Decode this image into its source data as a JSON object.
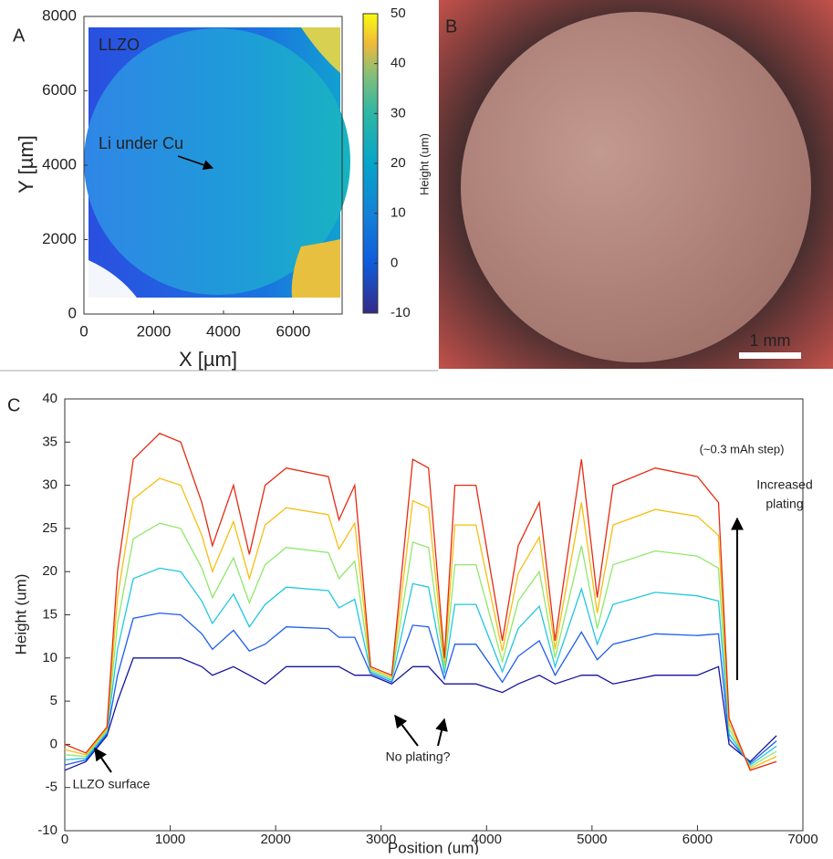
{
  "chart_data": [
    {
      "type": "heatmap",
      "panel_label": "A",
      "xlabel": "X [µm]",
      "ylabel": "Y [µm]",
      "xlim": [
        0,
        7400
      ],
      "ylim": [
        0,
        8000
      ],
      "xticks": [
        0,
        2000,
        4000,
        6000
      ],
      "yticks": [
        0,
        2000,
        4000,
        6000,
        8000
      ],
      "colorbar": {
        "label": "Height (um)",
        "lim": [
          -10,
          50
        ],
        "ticks": [
          -10,
          0,
          10,
          20,
          30,
          40,
          50
        ]
      },
      "annotations": [
        "LLZO",
        "Li under Cu"
      ]
    },
    {
      "type": "image",
      "panel_label": "B",
      "scale_bar": "1 mm"
    },
    {
      "type": "line",
      "panel_label": "C",
      "xlabel": "Position (um)",
      "ylabel": "Height (um)",
      "xlim": [
        0,
        7000
      ],
      "ylim": [
        -10,
        40
      ],
      "xticks": [
        0,
        1000,
        2000,
        3000,
        4000,
        5000,
        6000,
        7000
      ],
      "yticks": [
        -10,
        -5,
        0,
        5,
        10,
        15,
        20,
        25,
        30,
        35,
        40
      ],
      "annotations": {
        "step": "(~0.3 mAh step)",
        "increased": [
          "Increased",
          "plating"
        ],
        "no_plating": "No plating?",
        "surface": "LLZO surface"
      },
      "x": [
        0,
        200,
        400,
        500,
        650,
        900,
        1100,
        1300,
        1400,
        1600,
        1750,
        1900,
        2100,
        2500,
        2600,
        2750,
        2900,
        3100,
        3300,
        3450,
        3600,
        3700,
        3900,
        4150,
        4300,
        4500,
        4650,
        4900,
        5050,
        5200,
        5600,
        6000,
        6200,
        6300,
        6500,
        6750
      ],
      "series": [
        {
          "color": "#14149e",
          "values": [
            -3,
            -2,
            1,
            5,
            10,
            10,
            10,
            9,
            8,
            9,
            8,
            7,
            9,
            9,
            9,
            8,
            8,
            7,
            9,
            9,
            7,
            7,
            7,
            6,
            7,
            8,
            7,
            8,
            8,
            7,
            8,
            8,
            9,
            0,
            -2,
            1
          ]
        },
        {
          "color": "#1e5cf0",
          "values": [
            -2.4,
            -1.8,
            1.2,
            8,
            14.6,
            15.2,
            15,
            12.8,
            11,
            13.2,
            10.8,
            11.6,
            13.6,
            13.4,
            12.4,
            12.4,
            8.2,
            7.2,
            13.8,
            13.6,
            7.6,
            11.6,
            11.6,
            7.2,
            10.2,
            12,
            8,
            13,
            9.8,
            11.6,
            12.8,
            12.6,
            12.8,
            0.6,
            -2.2,
            0.4
          ]
        },
        {
          "color": "#22c6e0",
          "values": [
            -1.8,
            -1.6,
            1.4,
            11,
            19.2,
            20.4,
            20,
            16.6,
            14,
            17.4,
            13.6,
            16.2,
            18.2,
            17.8,
            15.8,
            16.8,
            8.4,
            7.4,
            18.6,
            18.2,
            8.2,
            16.2,
            16.2,
            8.4,
            13.4,
            16,
            9,
            18,
            11.6,
            16.2,
            17.6,
            17.2,
            16.6,
            1.2,
            -2.4,
            -0.2
          ]
        },
        {
          "color": "#8ee86a",
          "values": [
            -1.2,
            -1.4,
            1.6,
            14,
            23.8,
            25.6,
            25,
            20.4,
            17,
            21.6,
            16.4,
            20.8,
            22.8,
            22.2,
            19.2,
            21.2,
            8.6,
            7.6,
            23.4,
            22.8,
            8.8,
            20.8,
            20.8,
            9.6,
            16.6,
            20,
            10,
            23,
            13.4,
            20.8,
            22.4,
            21.8,
            20.4,
            1.8,
            -2.6,
            -0.8
          ]
        },
        {
          "color": "#f6be10",
          "values": [
            -0.6,
            -1.2,
            1.8,
            17,
            28.4,
            30.8,
            30,
            24.2,
            20,
            25.8,
            19.2,
            25.4,
            27.4,
            26.6,
            22.6,
            25.6,
            8.8,
            7.8,
            28.2,
            27.4,
            9.4,
            25.4,
            25.4,
            10.8,
            19.8,
            24,
            11,
            28,
            15.2,
            25.4,
            27.2,
            26.4,
            24.2,
            2.4,
            -2.8,
            -1.4
          ]
        },
        {
          "color": "#e62a12",
          "values": [
            0,
            -1,
            2,
            20,
            33,
            36,
            35,
            28,
            23,
            30,
            22,
            30,
            32,
            31,
            26,
            30,
            9,
            8,
            33,
            32,
            10,
            30,
            30,
            12,
            23,
            28,
            12,
            33,
            17,
            30,
            32,
            31,
            28,
            3,
            -3,
            -2
          ]
        }
      ]
    }
  ]
}
